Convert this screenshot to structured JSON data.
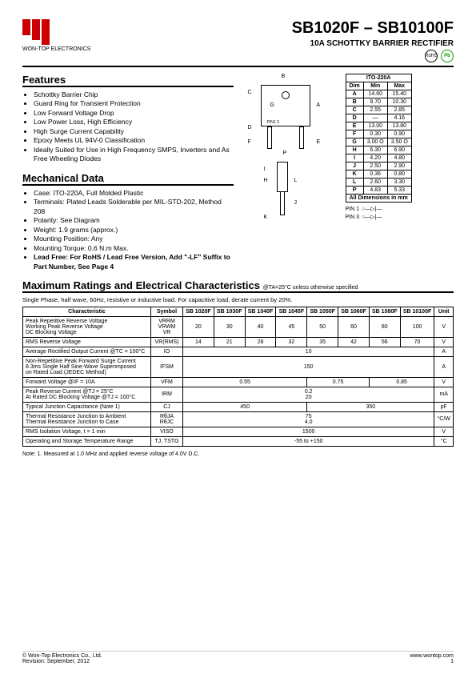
{
  "header": {
    "company": "WON-TOP ELECTRONICS",
    "title": "SB1020F – SB10100F",
    "subtitle": "10A SCHOTTKY BARRIER RECTIFIER",
    "rohs_label": "RoHS",
    "pb_label": "Pb"
  },
  "features": {
    "heading": "Features",
    "items": [
      "Schottky Barrier Chip",
      "Guard Ring for Transient Protection",
      "Low Forward Voltage Drop",
      "Low Power Loss, High Efficiency",
      "High Surge Current Capability",
      "Epoxy Meets UL 94V-0 Classification",
      "Ideally Suited for Use in High Frequency SMPS, Inverters and As Free Wheeling Diodes"
    ]
  },
  "mechanical": {
    "heading": "Mechanical Data",
    "items": [
      "Case: ITO-220A, Full Molded Plastic",
      "Terminals: Plated Leads Solderable per MIL-STD-202, Method 208",
      "Polarity: See Diagram",
      "Weight: 1.9 grams (approx.)",
      "Mounting Position: Any",
      "Mounting Torque: 0.6 N.m Max.",
      "Lead Free: For RoHS / Lead Free Version, Add \"-LF\" Suffix to Part Number, See Page 4"
    ]
  },
  "package_labels": {
    "B": "B",
    "C": "C",
    "G": "G",
    "A": "A",
    "D": "D",
    "F": "F",
    "E": "E",
    "P": "P",
    "I": "I",
    "H": "H",
    "L": "L",
    "J": "J",
    "K": "K",
    "pin1_3": "PIN1     3"
  },
  "dim_table": {
    "title": "ITO-220A",
    "headers": [
      "Dim",
      "Min",
      "Max"
    ],
    "rows": [
      [
        "A",
        "14.60",
        "15.40"
      ],
      [
        "B",
        "9.70",
        "10.30"
      ],
      [
        "C",
        "2.55",
        "2.85"
      ],
      [
        "D",
        "—",
        "4.16"
      ],
      [
        "E",
        "13.00",
        "13.80"
      ],
      [
        "F",
        "0.30",
        "0.90"
      ],
      [
        "G",
        "3.00 O",
        "3.50 O"
      ],
      [
        "H",
        "6.30",
        "6.90"
      ],
      [
        "I",
        "4.20",
        "4.80"
      ],
      [
        "J",
        "2.50",
        "2.90"
      ],
      [
        "K",
        "0.36",
        "0.80"
      ],
      [
        "L",
        "2.60",
        "3.30"
      ],
      [
        "P",
        "4.83",
        "5.33"
      ]
    ],
    "caption": "All Dimensions in mm"
  },
  "pins": {
    "pin1": "PIN 1",
    "pin3": "PIN 3"
  },
  "max_ratings": {
    "heading": "Maximum Ratings and Electrical Characteristics",
    "cond": "@TA=25°C unless otherwise specified",
    "note": "Single Phase, half wave, 60Hz, resistive or inductive load. For capacitive load, derate current by 20%."
  },
  "char_table": {
    "headers": [
      "Characteristic",
      "Symbol",
      "SB 1020F",
      "SB 1030F",
      "SB 1040F",
      "SB 1045F",
      "SB 1050F",
      "SB 1060F",
      "SB 1080F",
      "SB 10100F",
      "Unit"
    ],
    "rows": [
      {
        "c": "Peak Repetitive Reverse Voltage\nWorking Peak Reverse Voltage\nDC Blocking Voltage",
        "s": "VRRM\nVRWM\nVR",
        "v": [
          "20",
          "30",
          "40",
          "45",
          "50",
          "60",
          "80",
          "100"
        ],
        "u": "V"
      },
      {
        "c": "RMS Reverse Voltage",
        "s": "VR(RMS)",
        "v": [
          "14",
          "21",
          "28",
          "32",
          "35",
          "42",
          "56",
          "70"
        ],
        "u": "V"
      },
      {
        "c": "Average Rectified Output Current   @TC = 100°C",
        "s": "IO",
        "span": "10",
        "u": "A"
      },
      {
        "c": "Non-Repetitive Peak Forward Surge Current\n8.3ms Single Half Sine-Wave Superimposed\non Rated Load (JEDEC Method)",
        "s": "IFSM",
        "span": "150",
        "u": "A"
      },
      {
        "c": "Forward Voltage                    @IF = 10A",
        "s": "VFM",
        "groups": [
          {
            "val": "0.55",
            "span": 4
          },
          {
            "val": "0.75",
            "span": 2
          },
          {
            "val": "0.85",
            "span": 2
          }
        ],
        "u": "V"
      },
      {
        "c": "Peak Reverse Current          @TJ = 25°C\nAt Rated DC Blocking Voltage  @TJ = 100°C",
        "s": "IRM",
        "span": "0.2\n20",
        "u": "mA"
      },
      {
        "c": "Typical Junction Capacitance (Note 1)",
        "s": "CJ",
        "groups": [
          {
            "val": "450",
            "span": 4
          },
          {
            "val": "350",
            "span": 4
          }
        ],
        "u": "pF"
      },
      {
        "c": "Thermal Resistance Junction to Ambient\nThermal Resistance Junction to Case",
        "s": "RθJA\nRθJC",
        "span": "75\n4.0",
        "u": "°C/W"
      },
      {
        "c": "RMS Isolation Voltage, t = 1 min",
        "s": "VISO",
        "span": "1500",
        "u": "V"
      },
      {
        "c": "Operating and Storage Temperature Range",
        "s": "TJ, TSTG",
        "span": "-55 to +150",
        "u": "°C"
      }
    ]
  },
  "table_note": "Note:  1. Measured at 1.0 MHz and applied reverse voltage of 4.0V D.C.",
  "footer": {
    "left1": "© Won-Top Electronics Co., Ltd.",
    "left2": "Revision: September, 2012",
    "right1": "www.wontop.com",
    "right2": "1"
  }
}
